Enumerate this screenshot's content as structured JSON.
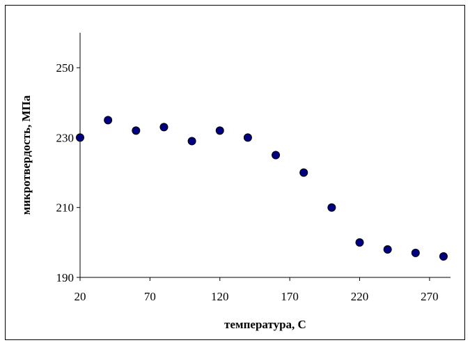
{
  "chart_data": {
    "type": "scatter",
    "title": "",
    "xlabel": "температура, С",
    "ylabel": "микротвердость, МПа",
    "xlim": [
      20,
      285
    ],
    "ylim": [
      190,
      260
    ],
    "x_ticks": [
      20,
      70,
      120,
      170,
      220,
      270
    ],
    "y_ticks": [
      190,
      210,
      230,
      250
    ],
    "grid": false,
    "legend": "none",
    "marker_color": "#000080",
    "series": [
      {
        "x": [
          20,
          40,
          60,
          80,
          100,
          120,
          140,
          160,
          180,
          200,
          220,
          240,
          260,
          280
        ],
        "y": [
          230,
          235,
          232,
          233,
          229,
          232,
          230,
          225,
          220,
          210,
          200,
          198,
          197,
          196
        ]
      }
    ]
  }
}
